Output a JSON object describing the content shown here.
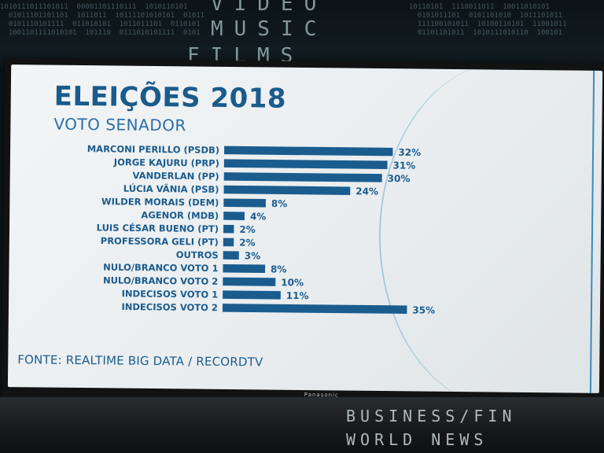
{
  "studio": {
    "top_words": [
      "VIDEO",
      "MUSIC",
      "FILMS"
    ],
    "bottom_ticker": [
      "BUSINESS/FIN",
      "WORLD NEWS"
    ],
    "tv_brand": "Panasonic"
  },
  "graphic": {
    "title": "ELEIÇÕES 2018",
    "subtitle": "VOTO SENADOR",
    "source": "FONTE: REALTIME BIG DATA / RECORDTV"
  },
  "chart_data": {
    "type": "bar",
    "orientation": "horizontal",
    "categories": [
      "MARCONI PERILLO (PSDB)",
      "JORGE KAJURU (PRP)",
      "VANDERLAN (PP)",
      "LÚCIA VÂNIA (PSB)",
      "WILDER MORAIS (DEM)",
      "AGENOR (MDB)",
      "LUIS CÉSAR BUENO (PT)",
      "PROFESSORA GELI (PT)",
      "OUTROS",
      "NULO/BRANCO VOTO 1",
      "NULO/BRANCO VOTO 2",
      "INDECISOS VOTO 1",
      "INDECISOS VOTO 2"
    ],
    "values": [
      32,
      31,
      30,
      24,
      8,
      4,
      2,
      2,
      3,
      8,
      10,
      11,
      35
    ],
    "value_labels": [
      "32%",
      "31%",
      "30%",
      "24%",
      "8%",
      "4%",
      "2%",
      "2%",
      "3%",
      "8%",
      "10%",
      "11%",
      "35%"
    ],
    "bar_color": "#1b5c8e",
    "label_color": "#1b5c8e"
  }
}
